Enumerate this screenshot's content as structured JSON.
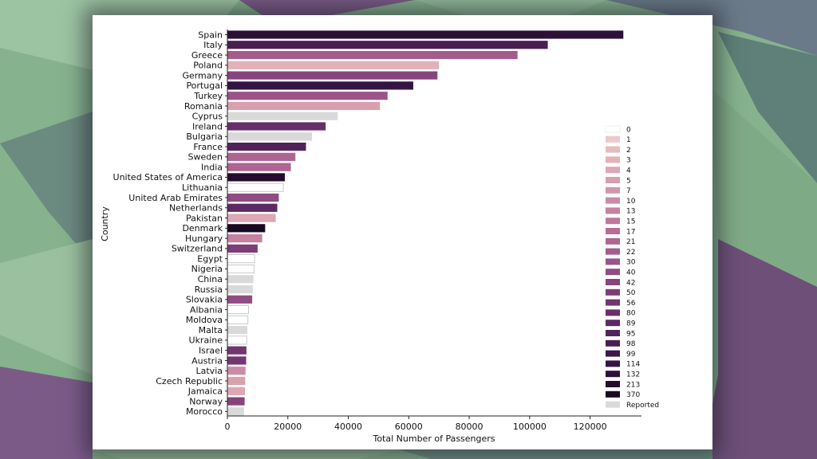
{
  "chart_data": {
    "type": "bar",
    "orientation": "horizontal",
    "xlabel": "Total Number of Passengers",
    "ylabel": "Country",
    "xlim": [
      0,
      137000
    ],
    "xticks": [
      0,
      20000,
      40000,
      60000,
      80000,
      100000,
      120000
    ],
    "grid": false,
    "legend_position": "right",
    "bars": [
      {
        "country": "Spain",
        "value": 131000,
        "group": "132"
      },
      {
        "country": "Italy",
        "value": 106000,
        "group": "98"
      },
      {
        "country": "Greece",
        "value": 96000,
        "group": "22"
      },
      {
        "country": "Poland",
        "value": 70000,
        "group": "3"
      },
      {
        "country": "Germany",
        "value": 69500,
        "group": "42"
      },
      {
        "country": "Portugal",
        "value": 61500,
        "group": "114"
      },
      {
        "country": "Turkey",
        "value": 53000,
        "group": "30"
      },
      {
        "country": "Romania",
        "value": 50500,
        "group": "5"
      },
      {
        "country": "Cyprus",
        "value": 36500,
        "group": "Reported"
      },
      {
        "country": "Ireland",
        "value": 32500,
        "group": "80"
      },
      {
        "country": "Bulgaria",
        "value": 28000,
        "group": "Reported"
      },
      {
        "country": "France",
        "value": 26000,
        "group": "95"
      },
      {
        "country": "Sweden",
        "value": 22500,
        "group": "21"
      },
      {
        "country": "India",
        "value": 21000,
        "group": "21"
      },
      {
        "country": "United States of America",
        "value": 19000,
        "group": "213"
      },
      {
        "country": "Lithuania",
        "value": 18500,
        "group": "0"
      },
      {
        "country": "United Arab Emirates",
        "value": 17000,
        "group": "40"
      },
      {
        "country": "Netherlands",
        "value": 16500,
        "group": "89"
      },
      {
        "country": "Pakistan",
        "value": 16000,
        "group": "4"
      },
      {
        "country": "Denmark",
        "value": 12500,
        "group": "370"
      },
      {
        "country": "Hungary",
        "value": 11500,
        "group": "13"
      },
      {
        "country": "Switzerland",
        "value": 10000,
        "group": "50"
      },
      {
        "country": "Egypt",
        "value": 9000,
        "group": "0"
      },
      {
        "country": "Nigeria",
        "value": 8800,
        "group": "0"
      },
      {
        "country": "China",
        "value": 8600,
        "group": "Reported"
      },
      {
        "country": "Russia",
        "value": 8400,
        "group": "Reported"
      },
      {
        "country": "Slovakia",
        "value": 8200,
        "group": "40"
      },
      {
        "country": "Albania",
        "value": 7000,
        "group": "0"
      },
      {
        "country": "Moldova",
        "value": 6800,
        "group": "0"
      },
      {
        "country": "Malta",
        "value": 6600,
        "group": "Reported"
      },
      {
        "country": "Ukraine",
        "value": 6400,
        "group": "0"
      },
      {
        "country": "Israel",
        "value": 6300,
        "group": "56"
      },
      {
        "country": "Austria",
        "value": 6200,
        "group": "56"
      },
      {
        "country": "Latvia",
        "value": 6000,
        "group": "10"
      },
      {
        "country": "Czech Republic",
        "value": 5900,
        "group": "5"
      },
      {
        "country": "Jamaica",
        "value": 5800,
        "group": "4"
      },
      {
        "country": "Norway",
        "value": 5700,
        "group": "42"
      },
      {
        "country": "Morocco",
        "value": 5500,
        "group": "Reported"
      }
    ],
    "legend": [
      {
        "label": "0",
        "color": "#ffffff"
      },
      {
        "label": "1",
        "color": "#ecc8c8"
      },
      {
        "label": "2",
        "color": "#e6bcbe"
      },
      {
        "label": "3",
        "color": "#e2b2b8"
      },
      {
        "label": "4",
        "color": "#dda8b3"
      },
      {
        "label": "5",
        "color": "#d8a0ae"
      },
      {
        "label": "7",
        "color": "#d296aa"
      },
      {
        "label": "10",
        "color": "#cb8ba5"
      },
      {
        "label": "13",
        "color": "#c481a0"
      },
      {
        "label": "15",
        "color": "#bd789b"
      },
      {
        "label": "17",
        "color": "#b56e96"
      },
      {
        "label": "21",
        "color": "#ad6591"
      },
      {
        "label": "22",
        "color": "#a45c8c"
      },
      {
        "label": "30",
        "color": "#9b5487"
      },
      {
        "label": "40",
        "color": "#914c82"
      },
      {
        "label": "42",
        "color": "#87447c"
      },
      {
        "label": "50",
        "color": "#7d3d76"
      },
      {
        "label": "56",
        "color": "#723670"
      },
      {
        "label": "80",
        "color": "#672f69"
      },
      {
        "label": "89",
        "color": "#5c2962"
      },
      {
        "label": "95",
        "color": "#51235a"
      },
      {
        "label": "98",
        "color": "#471d52"
      },
      {
        "label": "99",
        "color": "#3d1849"
      },
      {
        "label": "114",
        "color": "#341440"
      },
      {
        "label": "132",
        "color": "#2c1037"
      },
      {
        "label": "213",
        "color": "#230c2d"
      },
      {
        "label": "370",
        "color": "#1a0822"
      },
      {
        "label": "Reported",
        "color": "#d9d9d9"
      }
    ]
  }
}
